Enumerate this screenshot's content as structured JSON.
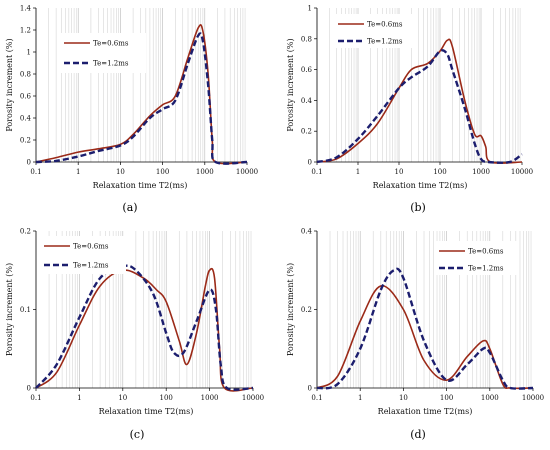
{
  "chart_data": [
    {
      "id": "a",
      "type": "line",
      "panel_label": "(a)",
      "xlabel": "Relaxation time T2(ms)",
      "ylabel": "Porosity increment (%)",
      "xscale": "log",
      "xlim": [
        0.1,
        10000
      ],
      "ylim": [
        0,
        1.4
      ],
      "yticks": [
        0,
        0.2,
        0.4,
        0.6,
        0.8,
        1,
        1.2,
        1.4
      ],
      "ytick_labels": [
        "0",
        "0.2",
        "0.4",
        "0.6",
        "0.8",
        "1",
        "1.2",
        "1.4"
      ],
      "xtick_labels": [
        "0.1",
        "1",
        "10",
        "100",
        "1000",
        "10000"
      ],
      "grid": "vertical-minor",
      "legend": "top-left",
      "series": [
        {
          "name": "Te=0.6ms",
          "color": "#9b2a18",
          "dash": "solid",
          "points": [
            [
              0.1,
              0
            ],
            [
              0.3,
              0.04
            ],
            [
              1,
              0.09
            ],
            [
              3,
              0.12
            ],
            [
              10,
              0.16
            ],
            [
              20,
              0.25
            ],
            [
              50,
              0.42
            ],
            [
              100,
              0.52
            ],
            [
              200,
              0.6
            ],
            [
              400,
              0.95
            ],
            [
              700,
              1.22
            ],
            [
              900,
              1.19
            ],
            [
              1200,
              0.8
            ],
            [
              1500,
              0.2
            ],
            [
              1800,
              0
            ],
            [
              10000,
              0
            ]
          ]
        },
        {
          "name": "Te=1.2ms",
          "color": "#1c1e6e",
          "dash": "dashed",
          "points": [
            [
              0.1,
              0
            ],
            [
              0.3,
              0.01
            ],
            [
              1,
              0.05
            ],
            [
              3,
              0.1
            ],
            [
              10,
              0.15
            ],
            [
              20,
              0.23
            ],
            [
              50,
              0.4
            ],
            [
              100,
              0.48
            ],
            [
              200,
              0.56
            ],
            [
              400,
              0.9
            ],
            [
              700,
              1.15
            ],
            [
              900,
              1.1
            ],
            [
              1200,
              0.7
            ],
            [
              1500,
              0.2
            ],
            [
              1800,
              0
            ],
            [
              10000,
              0
            ]
          ]
        }
      ]
    },
    {
      "id": "b",
      "type": "line",
      "panel_label": "(b)",
      "xlabel": "Relaxation time T2(ms)",
      "ylabel": "Porosity increment (%)",
      "xscale": "log",
      "xlim": [
        0.1,
        10000
      ],
      "ylim": [
        0,
        1
      ],
      "yticks": [
        0,
        0.2,
        0.4,
        0.6,
        0.8,
        1
      ],
      "ytick_labels": [
        "0",
        "0.2",
        "0.4",
        "0.6",
        "0.8",
        "1"
      ],
      "xtick_labels": [
        "0.1",
        "1",
        "10",
        "100",
        "1000",
        "10000"
      ],
      "grid": "vertical-minor",
      "legend": "top-left",
      "series": [
        {
          "name": "Te=0.6ms",
          "color": "#9b2a18",
          "dash": "solid",
          "points": [
            [
              0.1,
              0
            ],
            [
              0.3,
              0.02
            ],
            [
              1,
              0.12
            ],
            [
              3,
              0.25
            ],
            [
              10,
              0.48
            ],
            [
              20,
              0.6
            ],
            [
              50,
              0.64
            ],
            [
              100,
              0.72
            ],
            [
              150,
              0.79
            ],
            [
              200,
              0.75
            ],
            [
              400,
              0.4
            ],
            [
              700,
              0.18
            ],
            [
              1000,
              0.17
            ],
            [
              1300,
              0.1
            ],
            [
              1700,
              0
            ],
            [
              10000,
              0
            ]
          ]
        },
        {
          "name": "Te=1.2ms",
          "color": "#1c1e6e",
          "dash": "dashed",
          "points": [
            [
              0.1,
              0
            ],
            [
              0.3,
              0.03
            ],
            [
              1,
              0.15
            ],
            [
              3,
              0.3
            ],
            [
              10,
              0.48
            ],
            [
              20,
              0.55
            ],
            [
              50,
              0.62
            ],
            [
              100,
              0.72
            ],
            [
              150,
              0.7
            ],
            [
              200,
              0.6
            ],
            [
              400,
              0.35
            ],
            [
              700,
              0.12
            ],
            [
              1000,
              0.02
            ],
            [
              1500,
              0
            ],
            [
              5000,
              0
            ],
            [
              10000,
              0.05
            ]
          ]
        }
      ]
    },
    {
      "id": "c",
      "type": "line",
      "panel_label": "(c)",
      "xlabel": "Relaxation time T2(ms)",
      "ylabel": "Porosity increment (%)",
      "xscale": "log",
      "xlim": [
        0.1,
        10000
      ],
      "ylim": [
        0,
        0.2
      ],
      "yticks": [
        0,
        0.1,
        0.2
      ],
      "ytick_labels": [
        "0",
        "0.1",
        "0.2"
      ],
      "xtick_labels": [
        "0.1",
        "1",
        "10",
        "100",
        "1000",
        "10000"
      ],
      "grid": "vertical-minor",
      "legend": "top-left",
      "series": [
        {
          "name": "Te=0.6ms",
          "color": "#9b2a18",
          "dash": "solid",
          "points": [
            [
              0.1,
              0
            ],
            [
              0.3,
              0.02
            ],
            [
              1,
              0.08
            ],
            [
              3,
              0.13
            ],
            [
              10,
              0.15
            ],
            [
              30,
              0.14
            ],
            [
              60,
              0.125
            ],
            [
              100,
              0.11
            ],
            [
              200,
              0.06
            ],
            [
              300,
              0.03
            ],
            [
              500,
              0.07
            ],
            [
              800,
              0.13
            ],
            [
              1000,
              0.15
            ],
            [
              1300,
              0.14
            ],
            [
              1700,
              0.05
            ],
            [
              2200,
              0
            ],
            [
              10000,
              0
            ]
          ]
        },
        {
          "name": "Te=1.2ms",
          "color": "#1c1e6e",
          "dash": "dashed",
          "points": [
            [
              0.1,
              0
            ],
            [
              0.3,
              0.03
            ],
            [
              1,
              0.09
            ],
            [
              3,
              0.14
            ],
            [
              10,
              0.155
            ],
            [
              20,
              0.15
            ],
            [
              50,
              0.12
            ],
            [
              100,
              0.07
            ],
            [
              150,
              0.045
            ],
            [
              250,
              0.045
            ],
            [
              500,
              0.085
            ],
            [
              1000,
              0.125
            ],
            [
              1400,
              0.1
            ],
            [
              1800,
              0.03
            ],
            [
              2500,
              0
            ],
            [
              10000,
              0
            ]
          ]
        }
      ]
    },
    {
      "id": "d",
      "type": "line",
      "panel_label": "(d)",
      "xlabel": "Relaxation time T2(ms)",
      "ylabel": "Porosity increment (%)",
      "xscale": "log",
      "xlim": [
        0.1,
        10000
      ],
      "ylim": [
        0,
        0.4
      ],
      "yticks": [
        0,
        0.2,
        0.4
      ],
      "ytick_labels": [
        "0",
        "0.2",
        "0.4"
      ],
      "xtick_labels": [
        "0.1",
        "1",
        "10",
        "100",
        "1000",
        "10000"
      ],
      "grid": "vertical-minor",
      "legend": "top-right",
      "series": [
        {
          "name": "Te=0.6ms",
          "color": "#9b2a18",
          "dash": "solid",
          "points": [
            [
              0.1,
              0
            ],
            [
              0.3,
              0.03
            ],
            [
              1,
              0.17
            ],
            [
              3,
              0.26
            ],
            [
              10,
              0.2
            ],
            [
              30,
              0.07
            ],
            [
              100,
              0.02
            ],
            [
              300,
              0.08
            ],
            [
              700,
              0.12
            ],
            [
              1000,
              0.1
            ],
            [
              2000,
              0.01
            ],
            [
              3000,
              0
            ],
            [
              10000,
              0
            ]
          ]
        },
        {
          "name": "Te=1.2ms",
          "color": "#1c1e6e",
          "dash": "dashed",
          "points": [
            [
              0.1,
              0
            ],
            [
              0.3,
              0.01
            ],
            [
              1,
              0.1
            ],
            [
              3,
              0.25
            ],
            [
              6,
              0.3
            ],
            [
              10,
              0.28
            ],
            [
              30,
              0.12
            ],
            [
              100,
              0.02
            ],
            [
              300,
              0.06
            ],
            [
              700,
              0.1
            ],
            [
              1000,
              0.09
            ],
            [
              2000,
              0.02
            ],
            [
              3000,
              0
            ],
            [
              10000,
              0
            ]
          ]
        }
      ]
    }
  ]
}
